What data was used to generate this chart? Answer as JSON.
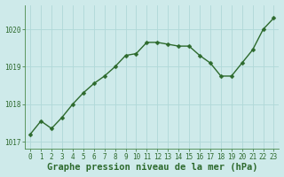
{
  "x": [
    0,
    1,
    2,
    3,
    4,
    5,
    6,
    7,
    8,
    9,
    10,
    11,
    12,
    13,
    14,
    15,
    16,
    17,
    18,
    19,
    20,
    21,
    22,
    23
  ],
  "y": [
    1017.2,
    1017.55,
    1017.35,
    1017.65,
    1018.0,
    1018.3,
    1018.55,
    1018.75,
    1019.0,
    1019.3,
    1019.35,
    1019.65,
    1019.65,
    1019.6,
    1019.55,
    1019.55,
    1019.3,
    1019.1,
    1018.75,
    1018.75,
    1019.1,
    1019.45,
    1020.0,
    1020.3
  ],
  "line_color": "#2d6a2d",
  "marker": "D",
  "marker_size": 2.5,
  "bg_color": "#ceeaea",
  "grid_color": "#b0d8d8",
  "xlabel": "Graphe pression niveau de la mer (hPa)",
  "yticks": [
    1017,
    1018,
    1019,
    1020
  ],
  "ylim": [
    1016.8,
    1020.65
  ],
  "xlim": [
    -0.5,
    23.5
  ],
  "xtick_labels": [
    "0",
    "1",
    "2",
    "3",
    "4",
    "5",
    "6",
    "7",
    "8",
    "9",
    "10",
    "11",
    "12",
    "13",
    "14",
    "15",
    "16",
    "17",
    "18",
    "19",
    "20",
    "21",
    "22",
    "23"
  ],
  "tick_color": "#2d6a2d",
  "tick_fontsize": 5.5,
  "xlabel_fontsize": 7.5,
  "axis_color": "#4a8a4a",
  "grid_linewidth": 0.6
}
